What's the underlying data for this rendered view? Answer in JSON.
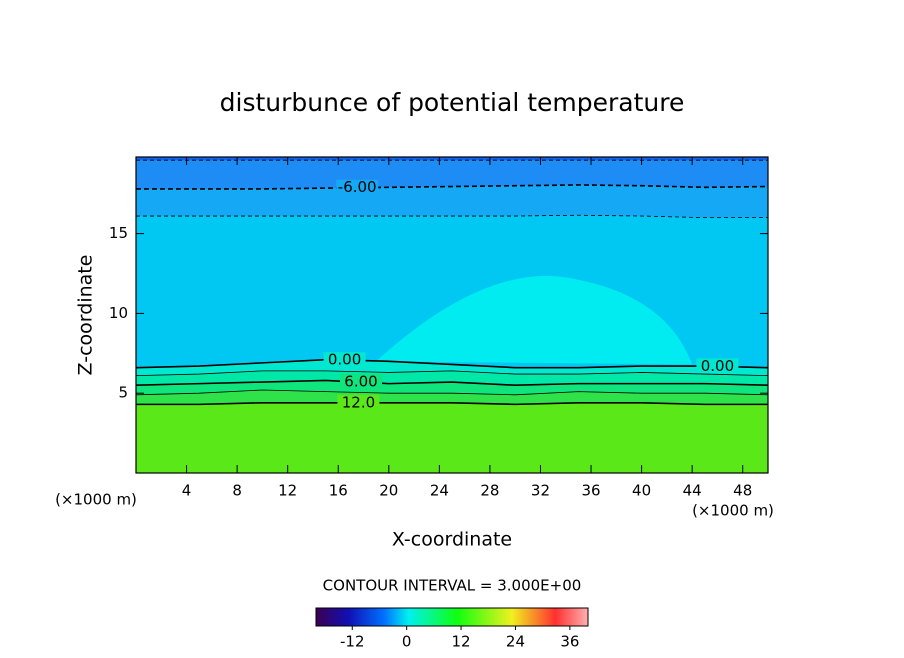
{
  "chart_data": {
    "type": "contour",
    "title": "disturbunce of potential temperature",
    "xlabel": "X-coordinate",
    "ylabel": "Z-coordinate",
    "x_unit": "(×1000 m)",
    "y_unit": "(×1000 m)",
    "xlim": [
      0,
      50
    ],
    "ylim": [
      0,
      19.8
    ],
    "xticks": [
      4,
      8,
      12,
      16,
      20,
      24,
      28,
      32,
      36,
      40,
      44,
      48
    ],
    "yticks": [
      5,
      10,
      15
    ],
    "x": [
      0,
      5,
      10,
      15,
      20,
      25,
      30,
      35,
      40,
      45,
      50
    ],
    "top_color": "#1464f0",
    "contours": [
      {
        "level": -9,
        "color": "#1e8cf5",
        "values": [
          19.6,
          19.6,
          19.6,
          19.6,
          19.6,
          19.6,
          19.6,
          19.6,
          19.6,
          19.6,
          19.6
        ]
      },
      {
        "level": -6,
        "color": "#14a8f5",
        "labels": [
          "-6.00"
        ],
        "values": [
          17.8,
          17.8,
          17.8,
          17.85,
          17.9,
          17.95,
          18.0,
          18.05,
          18.0,
          17.9,
          17.95
        ]
      },
      {
        "level": -3,
        "color": "#00c8f2",
        "values": [
          16.1,
          16.1,
          16.1,
          16.1,
          16.1,
          16.1,
          16.1,
          16.15,
          16.1,
          16.0,
          16.0
        ]
      },
      {
        "level": 0,
        "color": "#00e8d0",
        "labels": [
          "0.00",
          "0.00"
        ],
        "values": [
          6.6,
          6.7,
          6.9,
          7.1,
          7.0,
          6.8,
          6.6,
          6.6,
          6.7,
          6.7,
          6.6
        ]
      },
      {
        "level": 3,
        "color": "#00e8a8",
        "values": [
          6.1,
          6.2,
          6.4,
          6.4,
          6.3,
          6.4,
          6.2,
          6.2,
          6.3,
          6.2,
          6.1
        ]
      },
      {
        "level": 6,
        "color": "#10e47c",
        "labels": [
          "6.00"
        ],
        "values": [
          5.5,
          5.6,
          5.7,
          5.8,
          5.6,
          5.7,
          5.5,
          5.6,
          5.6,
          5.6,
          5.5
        ]
      },
      {
        "level": 9,
        "color": "#30e24a",
        "values": [
          4.9,
          5.0,
          5.2,
          5.1,
          5.0,
          5.0,
          4.9,
          5.1,
          5.0,
          5.0,
          4.9
        ]
      },
      {
        "level": 12,
        "color": "#5ae818",
        "labels": [
          "12.0"
        ],
        "values": [
          4.3,
          4.3,
          4.4,
          4.4,
          4.4,
          4.4,
          4.3,
          4.4,
          4.4,
          4.3,
          4.3
        ]
      }
    ],
    "contour_interval_text": "CONTOUR INTERVAL = 3.000E+00",
    "colorbar_lim": [
      -20,
      40
    ],
    "colorbar_ticks": [
      -12,
      0,
      12,
      24,
      36
    ]
  }
}
